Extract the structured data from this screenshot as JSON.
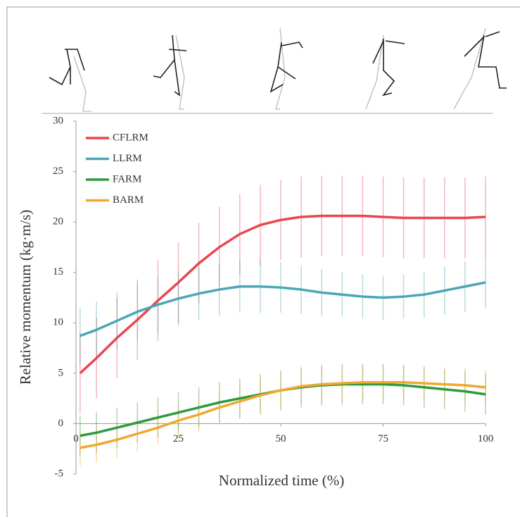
{
  "chart_data": {
    "type": "line",
    "x_label": "Normalized time (%)",
    "y_label": "Relative momentum (kg·m/s)",
    "x": [
      1,
      5,
      10,
      15,
      20,
      25,
      30,
      35,
      40,
      45,
      50,
      55,
      60,
      65,
      70,
      75,
      80,
      85,
      90,
      95,
      100
    ],
    "xlim": [
      0,
      100
    ],
    "xticks": [
      0,
      25,
      50,
      75,
      100
    ],
    "ylim": [
      -5,
      30
    ],
    "yticks": [
      -5,
      0,
      5,
      10,
      15,
      20,
      25,
      30
    ],
    "series": [
      {
        "name": "CFLRM",
        "color": "#e8474f",
        "values": [
          5,
          6.5,
          8.5,
          10.3,
          12.2,
          14,
          15.9,
          17.5,
          18.8,
          19.7,
          20.2,
          20.5,
          20.6,
          20.6,
          20.6,
          20.5,
          20.4,
          20.4,
          20.4,
          20.4,
          20.5
        ],
        "errors": [
          4,
          4,
          4,
          4,
          4,
          4,
          4,
          4,
          4,
          4,
          4,
          4,
          4,
          4,
          4,
          4,
          4,
          4,
          4,
          4,
          4
        ]
      },
      {
        "name": "LLRM",
        "color": "#4aa6b8",
        "values": [
          8.7,
          9.3,
          10.2,
          11.1,
          11.8,
          12.4,
          12.9,
          13.3,
          13.6,
          13.6,
          13.5,
          13.3,
          13.0,
          12.8,
          12.6,
          12.5,
          12.6,
          12.8,
          13.2,
          13.6,
          14.0
        ],
        "errors": [
          2.8,
          2.8,
          2.8,
          2.8,
          2.7,
          2.7,
          2.6,
          2.6,
          2.6,
          2.6,
          2.5,
          2.4,
          2.3,
          2.2,
          2.2,
          2.2,
          2.2,
          2.3,
          2.4,
          2.5,
          2.6
        ]
      },
      {
        "name": "FARM",
        "color": "#2e9a3e",
        "values": [
          -1.2,
          -0.9,
          -0.4,
          0.1,
          0.6,
          1.1,
          1.6,
          2.1,
          2.5,
          2.9,
          3.3,
          3.6,
          3.8,
          3.9,
          3.9,
          3.9,
          3.8,
          3.6,
          3.4,
          3.2,
          2.9
        ],
        "errors": [
          2,
          2,
          2,
          2,
          2,
          2,
          2,
          2,
          2,
          2,
          2,
          2,
          2,
          2,
          2,
          2,
          2,
          2,
          2,
          2,
          2
        ]
      },
      {
        "name": "BARM",
        "color": "#f0a830",
        "values": [
          -2.4,
          -2.1,
          -1.6,
          -1.0,
          -0.4,
          0.3,
          0.9,
          1.6,
          2.2,
          2.8,
          3.3,
          3.7,
          3.9,
          4.0,
          4.1,
          4.1,
          4.1,
          4.0,
          3.9,
          3.8,
          3.6
        ],
        "errors": [
          1.8,
          1.8,
          1.8,
          1.8,
          1.7,
          1.7,
          1.7,
          1.7,
          1.7,
          1.7,
          1.7,
          1.7,
          1.7,
          1.7,
          1.7,
          1.7,
          1.7,
          1.7,
          1.7,
          1.7,
          1.7
        ]
      }
    ],
    "legend": "upper-left"
  }
}
